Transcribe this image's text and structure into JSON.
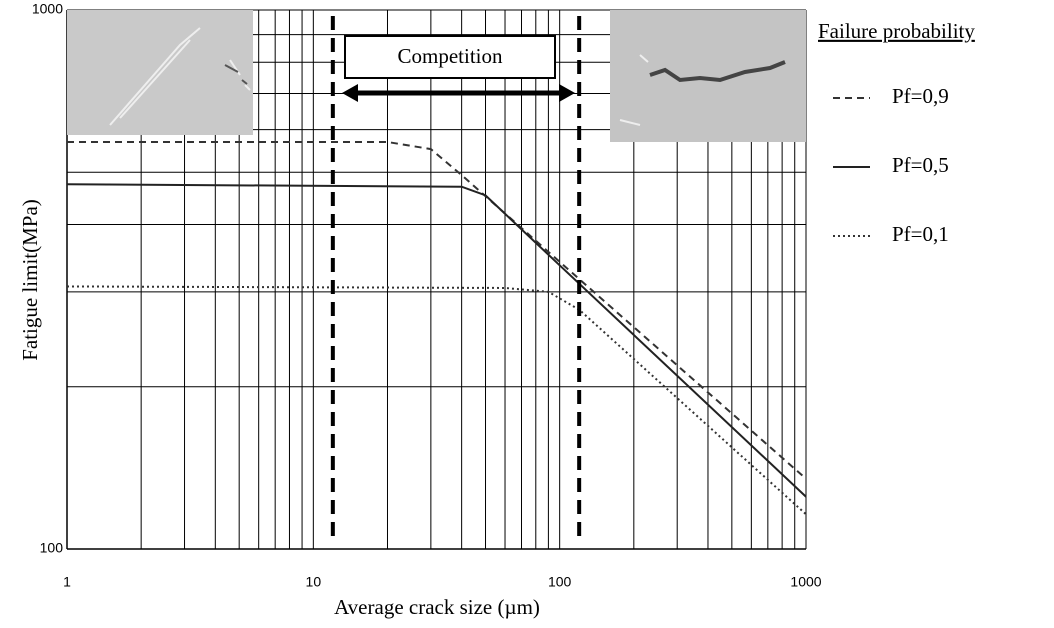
{
  "chart_data": {
    "type": "line",
    "x_label": "Average crack size (µm)",
    "y_label": "Fatigue limit(MPa)",
    "xlim": [
      1,
      1000
    ],
    "ylim": [
      100,
      1000
    ],
    "xscale": "log",
    "yscale": "log",
    "xticks": [
      1,
      10,
      100,
      1000
    ],
    "yticks": [
      100,
      1000
    ],
    "xminor": [
      2,
      3,
      4,
      5,
      6,
      7,
      8,
      9,
      20,
      30,
      40,
      50,
      60,
      70,
      80,
      90,
      200,
      300,
      400,
      500,
      600,
      700,
      800,
      900
    ],
    "yminor": [
      200,
      300,
      400,
      500,
      600,
      700,
      800,
      900
    ],
    "grid": true,
    "legend_title": "Failure probability",
    "legend_position": "right",
    "series": [
      {
        "name": "Pf=0,9",
        "color": "#333333",
        "dash": "dashed",
        "x": [
          1,
          20,
          30,
          40,
          100,
          1000
        ],
        "values": [
          569,
          569,
          552,
          494,
          341,
          135
        ]
      },
      {
        "name": "Pf=0,5",
        "color": "#222222",
        "dash": "solid",
        "x": [
          1,
          40,
          50,
          100,
          1000
        ],
        "values": [
          475,
          470,
          453,
          336,
          125
        ]
      },
      {
        "name": "Pf=0,1",
        "color": "#333333",
        "dash": "dotted",
        "x": [
          1,
          60,
          90,
          120,
          1000
        ],
        "values": [
          307,
          305,
          300,
          278,
          116
        ]
      }
    ],
    "annotation": {
      "text": "Competition",
      "vlines": [
        12,
        120
      ]
    }
  }
}
